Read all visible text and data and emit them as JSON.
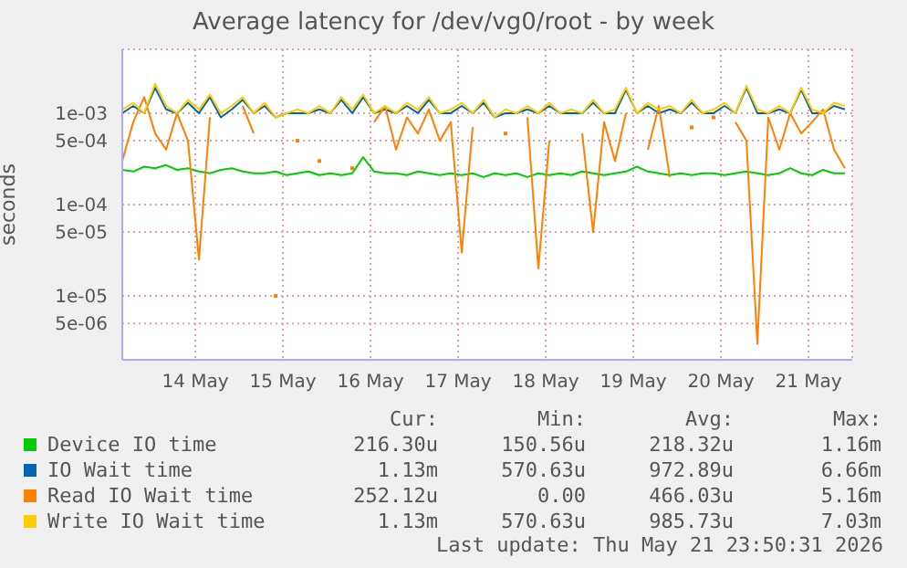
{
  "chart_data": {
    "type": "line",
    "title": "Average latency for /dev/vg0/root - by week",
    "ylabel": "seconds",
    "x": [
      "2026-05-13T16:00",
      "2026-05-13T19:00",
      "2026-05-13T22:00",
      "2026-05-14T01:00",
      "2026-05-14T04:00",
      "2026-05-14T07:00",
      "2026-05-14T10:00",
      "2026-05-14T13:00",
      "2026-05-14T16:00",
      "2026-05-14T19:00",
      "2026-05-14T22:00",
      "2026-05-15T01:00",
      "2026-05-15T04:00",
      "2026-05-15T07:00",
      "2026-05-15T10:00",
      "2026-05-15T13:00",
      "2026-05-15T16:00",
      "2026-05-15T19:00",
      "2026-05-15T22:00",
      "2026-05-16T01:00",
      "2026-05-16T04:00",
      "2026-05-16T07:00",
      "2026-05-16T10:00",
      "2026-05-16T13:00",
      "2026-05-16T16:00",
      "2026-05-16T19:00",
      "2026-05-16T22:00",
      "2026-05-17T01:00",
      "2026-05-17T04:00",
      "2026-05-17T07:00",
      "2026-05-17T10:00",
      "2026-05-17T13:00",
      "2026-05-17T16:00",
      "2026-05-17T19:00",
      "2026-05-17T22:00",
      "2026-05-18T01:00",
      "2026-05-18T04:00",
      "2026-05-18T07:00",
      "2026-05-18T10:00",
      "2026-05-18T13:00",
      "2026-05-18T16:00",
      "2026-05-18T19:00",
      "2026-05-18T22:00",
      "2026-05-19T01:00",
      "2026-05-19T04:00",
      "2026-05-19T07:00",
      "2026-05-19T10:00",
      "2026-05-19T13:00",
      "2026-05-19T16:00",
      "2026-05-19T19:00",
      "2026-05-19T22:00",
      "2026-05-20T01:00",
      "2026-05-20T04:00",
      "2026-05-20T07:00",
      "2026-05-20T10:00",
      "2026-05-20T13:00",
      "2026-05-20T16:00",
      "2026-05-20T19:00",
      "2026-05-20T22:00",
      "2026-05-21T01:00",
      "2026-05-21T04:00",
      "2026-05-21T07:00",
      "2026-05-21T10:00",
      "2026-05-21T13:00",
      "2026-05-21T16:00",
      "2026-05-21T19:00",
      "2026-05-21T22:00"
    ],
    "series": [
      {
        "name": "Device IO time",
        "color": "#00cc00",
        "values": [
          0.00024,
          0.00023,
          0.00026,
          0.00025,
          0.00027,
          0.00024,
          0.00025,
          0.00023,
          0.00022,
          0.00024,
          0.00025,
          0.00023,
          0.00022,
          0.00022,
          0.00023,
          0.00021,
          0.00022,
          0.00023,
          0.00021,
          0.00022,
          0.00021,
          0.00022,
          0.00033,
          0.00023,
          0.00022,
          0.00022,
          0.00021,
          0.00023,
          0.00022,
          0.00021,
          0.00022,
          0.00021,
          0.00022,
          0.0002,
          0.00022,
          0.00021,
          0.00022,
          0.0002,
          0.00022,
          0.00021,
          0.00022,
          0.00021,
          0.00023,
          0.00022,
          0.00021,
          0.00022,
          0.00023,
          0.00026,
          0.00023,
          0.00022,
          0.00021,
          0.00022,
          0.00021,
          0.00022,
          0.00022,
          0.00021,
          0.00022,
          0.00023,
          0.00022,
          0.00021,
          0.00022,
          0.00025,
          0.00022,
          0.00021,
          0.00024,
          0.00022,
          0.00022
        ]
      },
      {
        "name": "IO Wait time",
        "color": "#0066b3",
        "values": [
          0.001,
          0.0012,
          0.001,
          0.0019,
          0.0011,
          0.001,
          0.0013,
          0.001,
          0.0015,
          0.0009,
          0.0011,
          0.0014,
          0.001,
          0.0012,
          0.0009,
          0.001,
          0.001,
          0.001,
          0.0011,
          0.001,
          0.0014,
          0.001,
          0.0015,
          0.001,
          0.0011,
          0.001,
          0.0012,
          0.001,
          0.0014,
          0.001,
          0.001,
          0.0012,
          0.001,
          0.0013,
          0.0009,
          0.001,
          0.001,
          0.0011,
          0.001,
          0.0012,
          0.001,
          0.001,
          0.001,
          0.0013,
          0.001,
          0.001,
          0.0018,
          0.001,
          0.0012,
          0.001,
          0.0011,
          0.001,
          0.0013,
          0.001,
          0.001,
          0.0012,
          0.001,
          0.0019,
          0.001,
          0.001,
          0.0011,
          0.001,
          0.0018,
          0.001,
          0.001,
          0.0012,
          0.0011
        ]
      },
      {
        "name": "Read IO Wait time",
        "color": "#ff8000",
        "values": [
          0.0003,
          0.0008,
          0.0015,
          0.0006,
          0.0004,
          0.001,
          0.0005,
          2.5e-05,
          0.0009,
          null,
          null,
          0.0012,
          0.0006,
          null,
          1e-05,
          null,
          0.0005,
          null,
          0.0003,
          null,
          null,
          0.00025,
          null,
          0.0008,
          0.0012,
          0.0004,
          0.0009,
          0.0006,
          0.0011,
          0.0005,
          0.0008,
          3e-05,
          0.0007,
          null,
          null,
          0.0006,
          null,
          0.0009,
          2e-05,
          0.0005,
          null,
          null,
          0.0006,
          5e-05,
          0.0008,
          0.0003,
          0.001,
          null,
          0.0004,
          0.0012,
          0.0002,
          null,
          0.0007,
          null,
          0.0009,
          null,
          0.0008,
          0.0005,
          3e-06,
          0.0009,
          0.0004,
          0.001,
          0.0006,
          0.0008,
          0.0011,
          0.0004,
          0.00025
        ]
      },
      {
        "name": "Write IO Wait time",
        "color": "#ffcc00",
        "values": [
          0.0011,
          0.0013,
          0.001,
          0.0021,
          0.0012,
          0.001,
          0.0014,
          0.0011,
          0.0016,
          0.001,
          0.0012,
          0.0015,
          0.001,
          0.0013,
          0.0009,
          0.001,
          0.0011,
          0.001,
          0.0012,
          0.001,
          0.0015,
          0.0011,
          0.0016,
          0.001,
          0.0012,
          0.001,
          0.0013,
          0.0011,
          0.0015,
          0.001,
          0.0011,
          0.0013,
          0.001,
          0.0014,
          0.0009,
          0.0011,
          0.001,
          0.0012,
          0.001,
          0.0013,
          0.001,
          0.0011,
          0.001,
          0.0014,
          0.001,
          0.0011,
          0.0019,
          0.001,
          0.0013,
          0.0011,
          0.0012,
          0.001,
          0.0014,
          0.001,
          0.0011,
          0.0013,
          0.001,
          0.002,
          0.0011,
          0.001,
          0.0012,
          0.001,
          0.0019,
          0.0011,
          0.001,
          0.0013,
          0.0012
        ]
      }
    ],
    "xlim": [
      "2026-05-13T16:00",
      "2026-05-22T00:00"
    ],
    "xticks": [
      {
        "value": "2026-05-14T12:00",
        "label": "14 May"
      },
      {
        "value": "2026-05-15T12:00",
        "label": "15 May"
      },
      {
        "value": "2026-05-16T12:00",
        "label": "16 May"
      },
      {
        "value": "2026-05-17T12:00",
        "label": "17 May"
      },
      {
        "value": "2026-05-18T12:00",
        "label": "18 May"
      },
      {
        "value": "2026-05-19T12:00",
        "label": "19 May"
      },
      {
        "value": "2026-05-20T12:00",
        "label": "20 May"
      },
      {
        "value": "2026-05-21T12:00",
        "label": "21 May"
      }
    ],
    "ylim": [
      2e-06,
      0.005
    ],
    "yticks": [
      {
        "value": 5e-06,
        "label": "5e-06"
      },
      {
        "value": 1e-05,
        "label": "1e-05"
      },
      {
        "value": 5e-05,
        "label": "5e-05"
      },
      {
        "value": 0.0001,
        "label": "1e-04"
      },
      {
        "value": 0.0005,
        "label": "5e-04"
      },
      {
        "value": 0.001,
        "label": "1e-03"
      }
    ],
    "log": "y",
    "grid": true,
    "legend": "bottom",
    "annotations": [
      "Cur:",
      "Min:",
      "Avg:",
      "Max:",
      "216.30u",
      "150.56u",
      "218.32u",
      "1.16m",
      "1.13m",
      "570.63u",
      "972.89u",
      "6.66m",
      "252.12u",
      "0.00",
      "466.03u",
      "5.16m",
      "1.13m",
      "570.63u",
      "985.73u",
      "7.03m",
      "Last update: Thu May 21 23:50:31 2026"
    ]
  }
}
